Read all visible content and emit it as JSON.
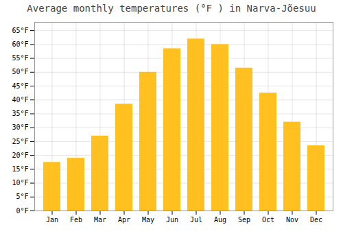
{
  "chart_data": {
    "type": "bar",
    "title": "Average monthly temperatures (°F ) in Narva-Jõesuu",
    "categories": [
      "Jan",
      "Feb",
      "Mar",
      "Apr",
      "May",
      "Jun",
      "Jul",
      "Aug",
      "Sep",
      "Oct",
      "Nov",
      "Dec"
    ],
    "values": [
      17.5,
      19.0,
      27.0,
      38.5,
      50.0,
      58.5,
      62.0,
      60.0,
      51.5,
      42.5,
      32.0,
      23.5
    ],
    "color": "#FFC020",
    "ylim": [
      0,
      68
    ],
    "yticks": [
      {
        "value": 0,
        "label": "0°F"
      },
      {
        "value": 5,
        "label": "5°F"
      },
      {
        "value": 10,
        "label": "10°F"
      },
      {
        "value": 15,
        "label": "15°F"
      },
      {
        "value": 20,
        "label": "20°F"
      },
      {
        "value": 25,
        "label": "25°F"
      },
      {
        "value": 30,
        "label": "30°F"
      },
      {
        "value": 35,
        "label": "35°F"
      },
      {
        "value": 40,
        "label": "40°F"
      },
      {
        "value": 45,
        "label": "45°F"
      },
      {
        "value": 50,
        "label": "50°F"
      },
      {
        "value": 55,
        "label": "55°F"
      },
      {
        "value": 60,
        "label": "60°F"
      },
      {
        "value": 65,
        "label": "65°F"
      }
    ],
    "grid": true
  }
}
